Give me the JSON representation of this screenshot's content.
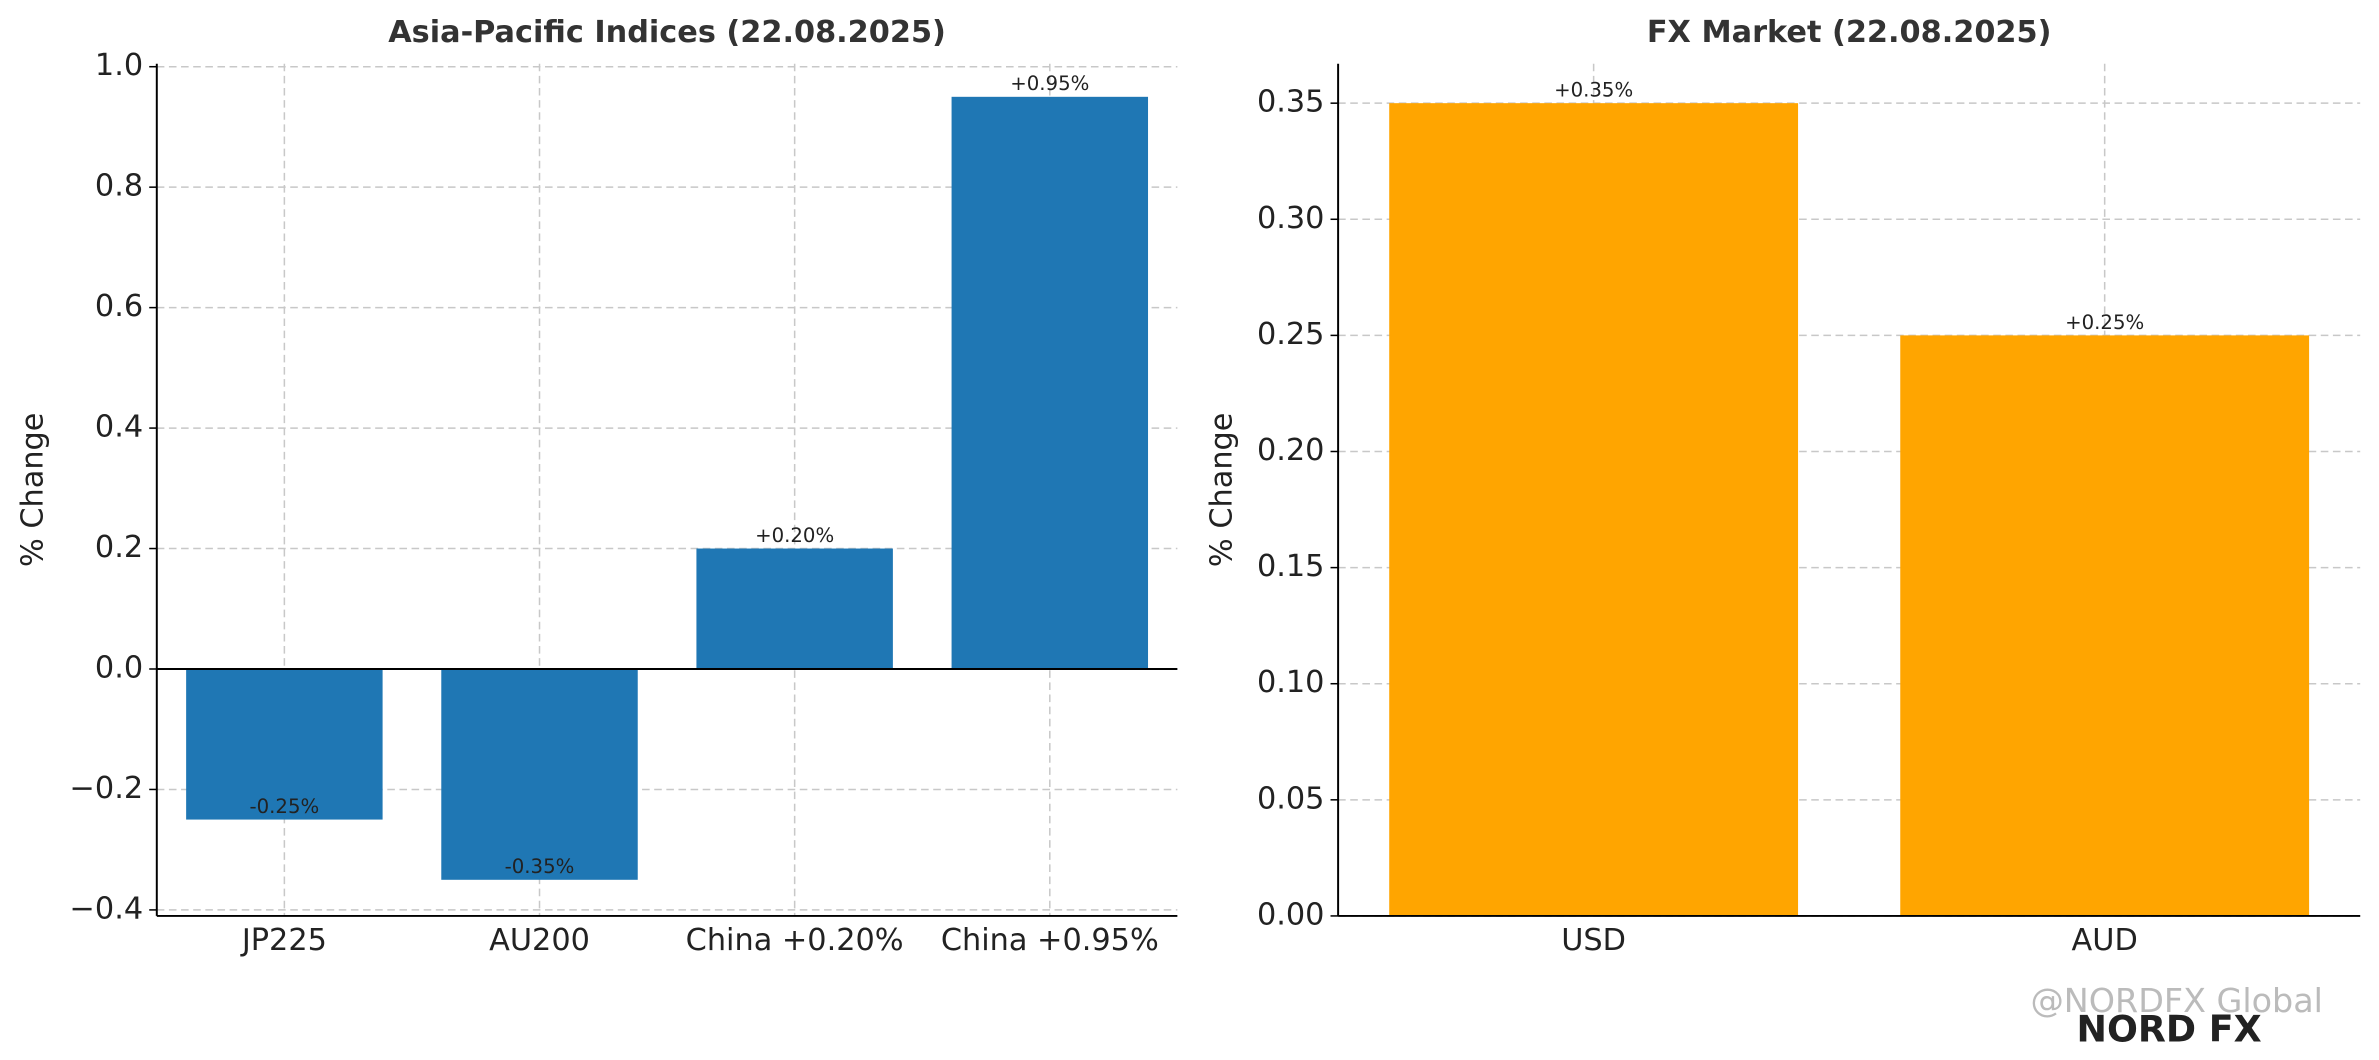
{
  "chart_data": [
    {
      "type": "bar",
      "title": "Asia-Pacific Indices (22.08.2025)",
      "y_label": "% Change",
      "categories": [
        "JP225",
        "AU200",
        "China +0.20%",
        "China +0.95%"
      ],
      "values": [
        -0.25,
        -0.35,
        0.2,
        0.95
      ],
      "value_labels": [
        "-0.25%",
        "-0.35%",
        "+0.20%",
        "+0.95%"
      ],
      "color": "#1f77b4",
      "ylim": [
        -0.41,
        1.005
      ],
      "yticks": [
        {
          "value": -0.4,
          "label": "−0.4"
        },
        {
          "value": -0.2,
          "label": "−0.2"
        },
        {
          "value": 0,
          "label": "0.0"
        },
        0.2,
        0.4,
        0.6,
        0.8,
        {
          "value": 1,
          "label": "1.0"
        }
      ],
      "grid": true
    },
    {
      "type": "bar",
      "title": "FX Market (22.08.2025)",
      "y_label": "% Change",
      "categories": [
        "USD",
        "AUD"
      ],
      "values": [
        0.35,
        0.25
      ],
      "value_labels": [
        "+0.35%",
        "+0.25%"
      ],
      "color": "#ffa500",
      "ylim": [
        0,
        0.367
      ],
      "yticks": [
        {
          "value": 0,
          "label": "0.00"
        },
        0.05,
        {
          "value": 0.1,
          "label": "0.10"
        },
        0.15,
        {
          "value": 0.2,
          "label": "0.20"
        },
        0.25,
        {
          "value": 0.3,
          "label": "0.30"
        },
        0.35
      ],
      "grid": true
    }
  ],
  "watermark": {
    "handle": "@NORDFX Global",
    "logo": "NORD FX"
  }
}
